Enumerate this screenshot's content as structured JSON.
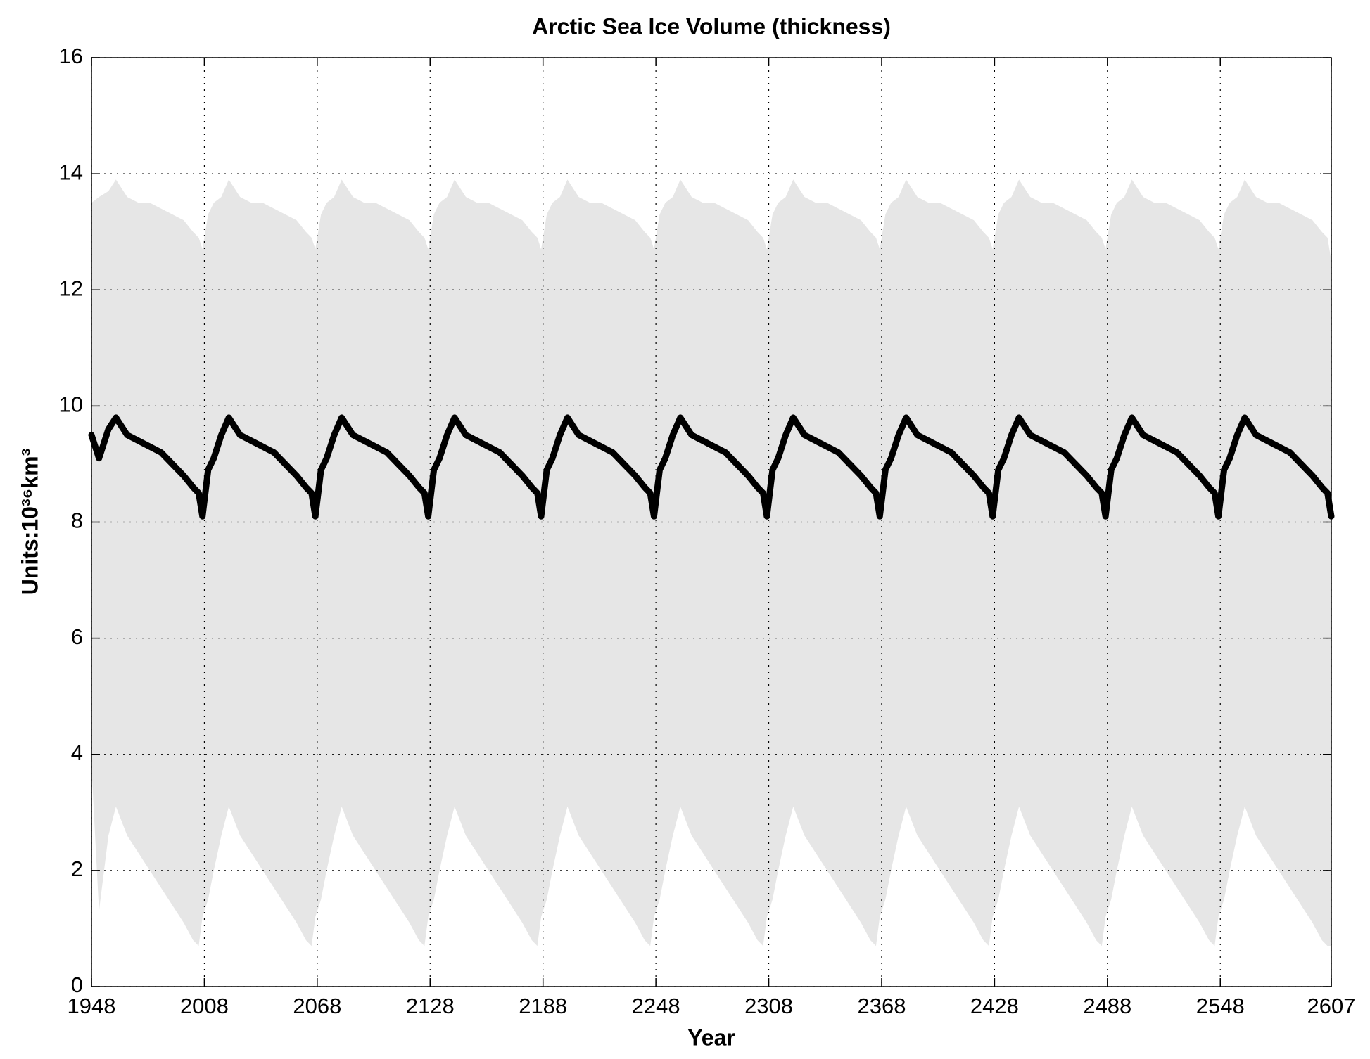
{
  "chart_data": {
    "type": "line",
    "title": "Arctic Sea Ice Volume (thickness)",
    "xlabel": "Year",
    "ylabel": "Units:10³⁶km³",
    "xlim": [
      1948,
      2607
    ],
    "ylim": [
      0,
      16
    ],
    "xticks": [
      1948,
      2008,
      2068,
      2128,
      2188,
      2248,
      2308,
      2368,
      2428,
      2488,
      2548,
      2607
    ],
    "yticks": [
      0,
      2,
      4,
      6,
      8,
      10,
      12,
      14,
      16
    ],
    "grid": true,
    "x": [
      1948,
      1952,
      1957,
      1961,
      1967,
      1973,
      1979,
      1985,
      1991,
      1997,
      2002,
      2005,
      2007,
      2010,
      2013,
      2017,
      2021,
      2027,
      2033,
      2039,
      2045,
      2051,
      2057,
      2062,
      2065,
      2067,
      2070,
      2073,
      2077,
      2081,
      2087,
      2093,
      2099,
      2105,
      2111,
      2117,
      2122,
      2125,
      2127,
      2130,
      2133,
      2137,
      2141,
      2147,
      2153,
      2159,
      2165,
      2171,
      2177,
      2182,
      2185,
      2187,
      2190,
      2193,
      2197,
      2201,
      2207,
      2213,
      2219,
      2225,
      2231,
      2237,
      2242,
      2245,
      2247,
      2250,
      2253,
      2257,
      2261,
      2267,
      2273,
      2279,
      2285,
      2291,
      2297,
      2302,
      2305,
      2307,
      2310,
      2313,
      2317,
      2321,
      2327,
      2333,
      2339,
      2345,
      2351,
      2357,
      2362,
      2365,
      2367,
      2370,
      2373,
      2377,
      2381,
      2387,
      2393,
      2399,
      2405,
      2411,
      2417,
      2422,
      2425,
      2427,
      2430,
      2433,
      2437,
      2441,
      2447,
      2453,
      2459,
      2465,
      2471,
      2477,
      2482,
      2485,
      2487,
      2490,
      2493,
      2497,
      2501,
      2507,
      2513,
      2519,
      2525,
      2531,
      2537,
      2542,
      2545,
      2547,
      2550,
      2553,
      2557,
      2561,
      2567,
      2573,
      2579,
      2585,
      2591,
      2597,
      2602,
      2605,
      2607
    ],
    "series": [
      {
        "color": "#000000",
        "values": [
          9.5,
          9.1,
          9.6,
          9.8,
          9.5,
          9.4,
          9.3,
          9.2,
          9.0,
          8.8,
          8.6,
          8.5,
          8.1,
          8.9,
          9.1,
          9.5,
          9.8,
          9.5,
          9.4,
          9.3,
          9.2,
          9.0,
          8.8,
          8.6,
          8.5,
          8.1,
          8.9,
          9.1,
          9.5,
          9.8,
          9.5,
          9.4,
          9.3,
          9.2,
          9.0,
          8.8,
          8.6,
          8.5,
          8.1,
          8.9,
          9.1,
          9.5,
          9.8,
          9.5,
          9.4,
          9.3,
          9.2,
          9.0,
          8.8,
          8.6,
          8.5,
          8.1,
          8.9,
          9.1,
          9.5,
          9.8,
          9.5,
          9.4,
          9.3,
          9.2,
          9.0,
          8.8,
          8.6,
          8.5,
          8.1,
          8.9,
          9.1,
          9.5,
          9.8,
          9.5,
          9.4,
          9.3,
          9.2,
          9.0,
          8.8,
          8.6,
          8.5,
          8.1,
          8.9,
          9.1,
          9.5,
          9.8,
          9.5,
          9.4,
          9.3,
          9.2,
          9.0,
          8.8,
          8.6,
          8.5,
          8.1,
          8.9,
          9.1,
          9.5,
          9.8,
          9.5,
          9.4,
          9.3,
          9.2,
          9.0,
          8.8,
          8.6,
          8.5,
          8.1,
          8.9,
          9.1,
          9.5,
          9.8,
          9.5,
          9.4,
          9.3,
          9.2,
          9.0,
          8.8,
          8.6,
          8.5,
          8.1,
          8.9,
          9.1,
          9.5,
          9.8,
          9.5,
          9.4,
          9.3,
          9.2,
          9.0,
          8.8,
          8.6,
          8.5,
          8.1,
          8.9,
          9.1,
          9.5,
          9.8,
          9.5,
          9.4,
          9.3,
          9.2,
          9.0,
          8.8,
          8.6,
          8.5,
          8.1
        ]
      }
    ],
    "band": {
      "color": "#e6e6e6",
      "upper": [
        13.5,
        13.6,
        13.7,
        13.9,
        13.6,
        13.5,
        13.5,
        13.4,
        13.3,
        13.2,
        13.0,
        12.9,
        12.7,
        13.3,
        13.5,
        13.6,
        13.9,
        13.6,
        13.5,
        13.5,
        13.4,
        13.3,
        13.2,
        13.0,
        12.9,
        12.7,
        13.3,
        13.5,
        13.6,
        13.9,
        13.6,
        13.5,
        13.5,
        13.4,
        13.3,
        13.2,
        13.0,
        12.9,
        12.7,
        13.3,
        13.5,
        13.6,
        13.9,
        13.6,
        13.5,
        13.5,
        13.4,
        13.3,
        13.2,
        13.0,
        12.9,
        12.7,
        13.3,
        13.5,
        13.6,
        13.9,
        13.6,
        13.5,
        13.5,
        13.4,
        13.3,
        13.2,
        13.0,
        12.9,
        12.7,
        13.3,
        13.5,
        13.6,
        13.9,
        13.6,
        13.5,
        13.5,
        13.4,
        13.3,
        13.2,
        13.0,
        12.9,
        12.7,
        13.3,
        13.5,
        13.6,
        13.9,
        13.6,
        13.5,
        13.5,
        13.4,
        13.3,
        13.2,
        13.0,
        12.9,
        12.7,
        13.3,
        13.5,
        13.6,
        13.9,
        13.6,
        13.5,
        13.5,
        13.4,
        13.3,
        13.2,
        13.0,
        12.9,
        12.7,
        13.3,
        13.5,
        13.6,
        13.9,
        13.6,
        13.5,
        13.5,
        13.4,
        13.3,
        13.2,
        13.0,
        12.9,
        12.7,
        13.3,
        13.5,
        13.6,
        13.9,
        13.6,
        13.5,
        13.5,
        13.4,
        13.3,
        13.2,
        13.0,
        12.9,
        12.7,
        13.3,
        13.5,
        13.6,
        13.9,
        13.6,
        13.5,
        13.5,
        13.4,
        13.3,
        13.2,
        13.0,
        12.9,
        12.5
      ],
      "lower": [
        3.8,
        1.3,
        2.6,
        3.1,
        2.6,
        2.3,
        2.0,
        1.7,
        1.4,
        1.1,
        0.8,
        0.7,
        1.2,
        1.5,
        2.0,
        2.6,
        3.1,
        2.6,
        2.3,
        2.0,
        1.7,
        1.4,
        1.1,
        0.8,
        0.7,
        1.2,
        1.5,
        2.0,
        2.6,
        3.1,
        2.6,
        2.3,
        2.0,
        1.7,
        1.4,
        1.1,
        0.8,
        0.7,
        1.2,
        1.5,
        2.0,
        2.6,
        3.1,
        2.6,
        2.3,
        2.0,
        1.7,
        1.4,
        1.1,
        0.8,
        0.7,
        1.2,
        1.5,
        2.0,
        2.6,
        3.1,
        2.6,
        2.3,
        2.0,
        1.7,
        1.4,
        1.1,
        0.8,
        0.7,
        1.2,
        1.5,
        2.0,
        2.6,
        3.1,
        2.6,
        2.3,
        2.0,
        1.7,
        1.4,
        1.1,
        0.8,
        0.7,
        1.2,
        1.5,
        2.0,
        2.6,
        3.1,
        2.6,
        2.3,
        2.0,
        1.7,
        1.4,
        1.1,
        0.8,
        0.7,
        1.2,
        1.5,
        2.0,
        2.6,
        3.1,
        2.6,
        2.3,
        2.0,
        1.7,
        1.4,
        1.1,
        0.8,
        0.7,
        1.2,
        1.5,
        2.0,
        2.6,
        3.1,
        2.6,
        2.3,
        2.0,
        1.7,
        1.4,
        1.1,
        0.8,
        0.7,
        1.2,
        1.5,
        2.0,
        2.6,
        3.1,
        2.6,
        2.3,
        2.0,
        1.7,
        1.4,
        1.1,
        0.8,
        0.7,
        1.2,
        1.5,
        2.0,
        2.6,
        3.1,
        2.6,
        2.3,
        2.0,
        1.7,
        1.4,
        1.1,
        0.8,
        0.7,
        0.7
      ]
    }
  }
}
